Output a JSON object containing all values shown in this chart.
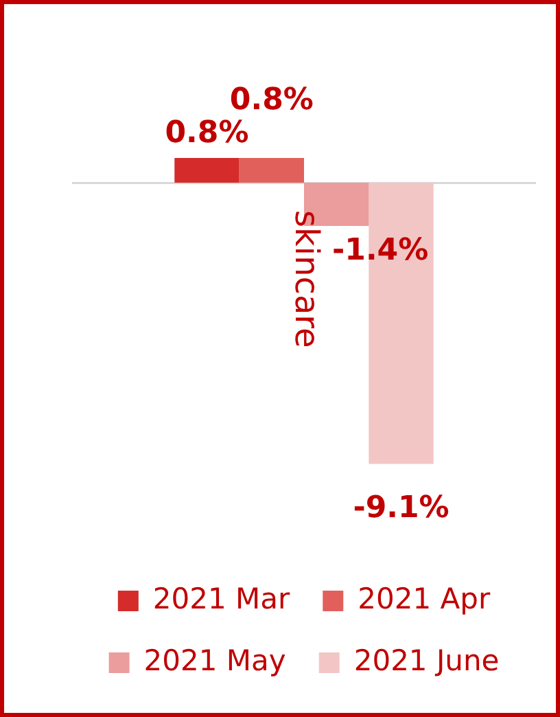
{
  "chart_data": {
    "type": "bar",
    "categories": [
      "skincare"
    ],
    "series": [
      {
        "name": "2021 Mar",
        "color": "#d62b2b",
        "values": [
          0.8
        ],
        "value_labels": [
          "0.8%"
        ]
      },
      {
        "name": "2021 Apr",
        "color": "#e2605c",
        "values": [
          0.8
        ],
        "value_labels": [
          "0.8%"
        ]
      },
      {
        "name": "2021 May",
        "color": "#eb9c9c",
        "values": [
          -1.4
        ],
        "value_labels": [
          "-1.4%"
        ]
      },
      {
        "name": "2021 June",
        "color": "#f3c6c6",
        "values": [
          -9.1
        ],
        "value_labels": [
          "-9.1%"
        ]
      }
    ],
    "legend": "bottom"
  }
}
